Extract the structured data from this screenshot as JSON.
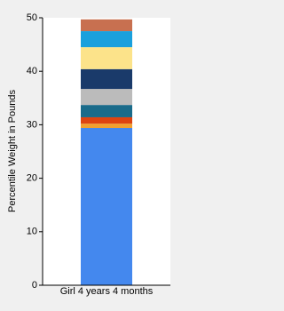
{
  "chart_data": {
    "type": "stacked_bar",
    "ylabel": "Percentile Weight in Pounds",
    "categories": [
      "Girl 4 years 4 months"
    ],
    "series": [
      {
        "color": "#4488ee",
        "values": [
          29.4
        ]
      },
      {
        "color": "#f0a030",
        "values": [
          0.8
        ]
      },
      {
        "color": "#dd4411",
        "values": [
          1.2
        ]
      },
      {
        "color": "#1a6b8a",
        "values": [
          2.3
        ]
      },
      {
        "color": "#bbbbbb",
        "values": [
          3.0
        ]
      },
      {
        "color": "#1a3a6a",
        "values": [
          3.7
        ]
      },
      {
        "color": "#fce38a",
        "values": [
          4.1
        ]
      },
      {
        "color": "#1aa0dd",
        "values": [
          3.0
        ]
      },
      {
        "color": "#c87050",
        "values": [
          2.2
        ]
      }
    ],
    "ylim": [
      0,
      50
    ],
    "yticks": [
      0,
      10,
      20,
      30,
      40,
      50
    ]
  }
}
